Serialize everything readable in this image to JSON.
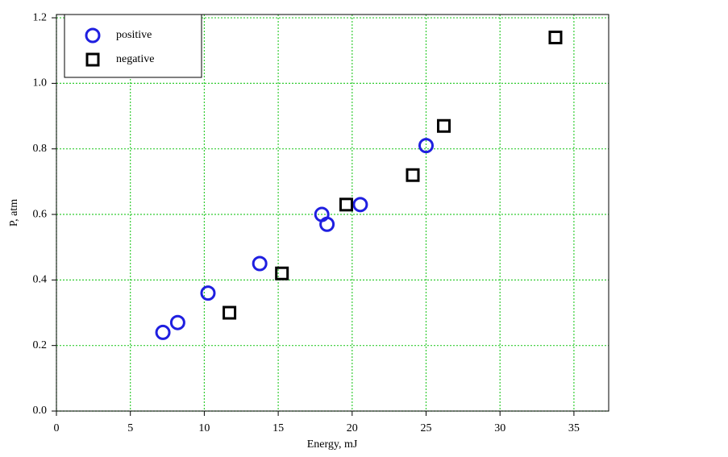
{
  "chart_data": {
    "type": "scatter",
    "x_label": "Energy, mJ",
    "y_label": "P, atm",
    "xlim": [
      0,
      37.35
    ],
    "ylim": [
      0,
      1.21
    ],
    "xticks": [
      0,
      5,
      10,
      15,
      20,
      25,
      30,
      35
    ],
    "yticks": [
      {
        "value": 0,
        "label": "0.0"
      },
      0.2,
      0.4,
      0.6,
      0.8,
      {
        "value": 1,
        "label": "1.0"
      },
      1.2
    ],
    "grid": true,
    "grid_color": "#33cc33",
    "legend": "upper left",
    "series": [
      {
        "name": "positive",
        "color": "#1f1fe0",
        "marker": "circle",
        "x": [
          7.2,
          8.2,
          10.25,
          13.75,
          17.95,
          18.3,
          20.55,
          25.0
        ],
        "values": [
          0.24,
          0.27,
          0.36,
          0.45,
          0.6,
          0.57,
          0.63,
          0.81
        ]
      },
      {
        "name": "negative",
        "color": "#000000",
        "marker": "square",
        "x": [
          11.7,
          15.25,
          19.6,
          24.1,
          26.2,
          33.75
        ],
        "values": [
          0.3,
          0.42,
          0.63,
          0.72,
          0.87,
          1.14
        ]
      }
    ]
  }
}
